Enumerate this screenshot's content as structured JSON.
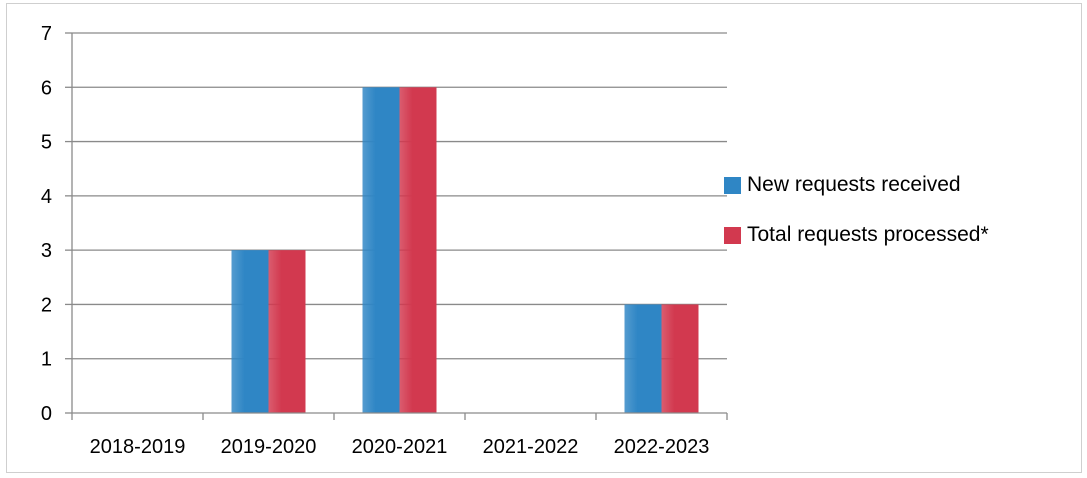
{
  "chart_data": {
    "type": "bar",
    "categories": [
      "2018-2019",
      "2019-2020",
      "2020-2021",
      "2021-2022",
      "2022-2023"
    ],
    "series": [
      {
        "name": "New requests received",
        "values": [
          0,
          3,
          6,
          0,
          2
        ],
        "color": "#2f86c5"
      },
      {
        "name": "Total requests processed*",
        "values": [
          0,
          3,
          6,
          0,
          2
        ],
        "color": "#d2394f"
      }
    ],
    "yticks": [
      "0",
      "1",
      "2",
      "3",
      "4",
      "5",
      "6",
      "7"
    ],
    "ylim": [
      0,
      7
    ],
    "grid": true,
    "legend_position": "right"
  }
}
